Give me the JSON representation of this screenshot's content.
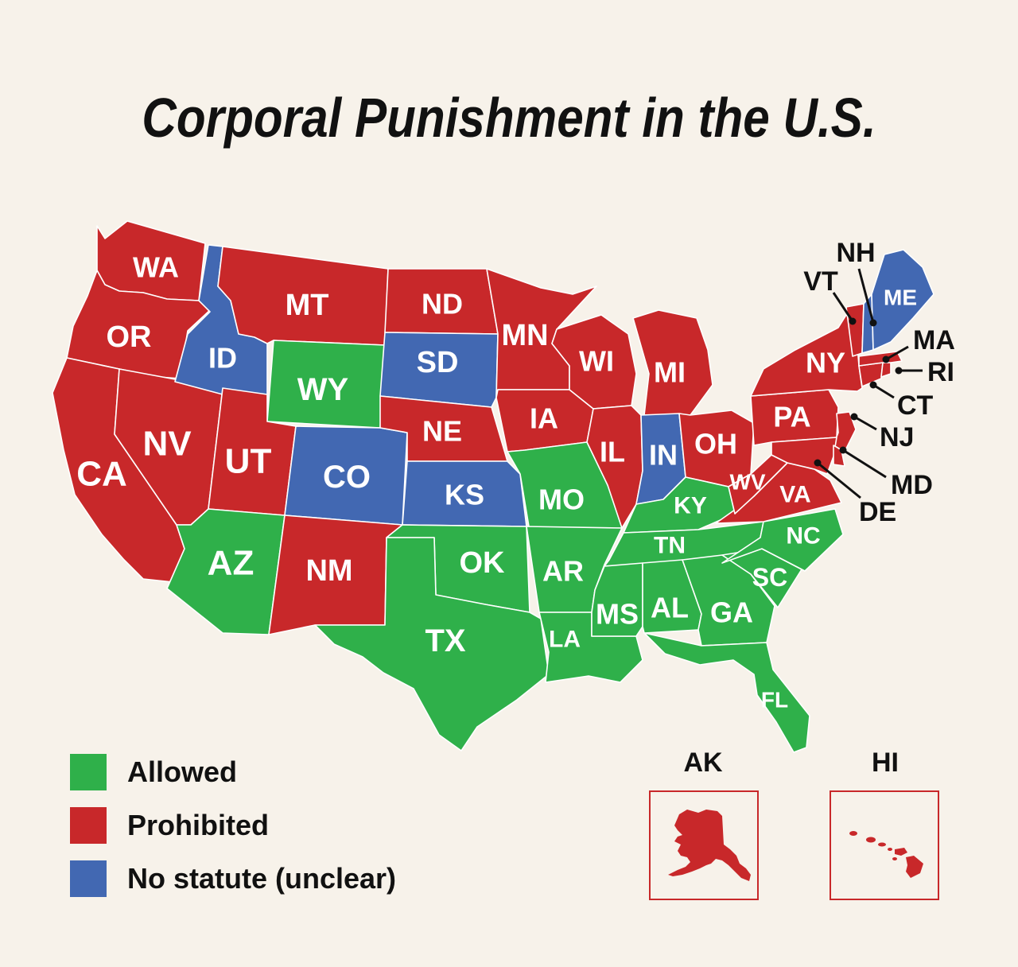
{
  "title": "Corporal Punishment in the U.S.",
  "colors": {
    "allowed": "#2fb04a",
    "prohibited": "#c8282a",
    "no_statute": "#4268b2",
    "background": "#f7f2ea"
  },
  "legend": [
    {
      "key": "allowed",
      "label": "Allowed"
    },
    {
      "key": "prohibited",
      "label": "Prohibited"
    },
    {
      "key": "no_statute",
      "label": "No statute (unclear)"
    }
  ],
  "states": [
    {
      "abbr": "WA",
      "status": "prohibited"
    },
    {
      "abbr": "OR",
      "status": "prohibited"
    },
    {
      "abbr": "CA",
      "status": "prohibited"
    },
    {
      "abbr": "NV",
      "status": "prohibited"
    },
    {
      "abbr": "ID",
      "status": "no_statute"
    },
    {
      "abbr": "MT",
      "status": "prohibited"
    },
    {
      "abbr": "WY",
      "status": "allowed"
    },
    {
      "abbr": "UT",
      "status": "prohibited"
    },
    {
      "abbr": "AZ",
      "status": "allowed"
    },
    {
      "abbr": "CO",
      "status": "no_statute"
    },
    {
      "abbr": "NM",
      "status": "prohibited"
    },
    {
      "abbr": "ND",
      "status": "prohibited"
    },
    {
      "abbr": "SD",
      "status": "no_statute"
    },
    {
      "abbr": "NE",
      "status": "prohibited"
    },
    {
      "abbr": "KS",
      "status": "no_statute"
    },
    {
      "abbr": "OK",
      "status": "allowed"
    },
    {
      "abbr": "TX",
      "status": "allowed"
    },
    {
      "abbr": "MN",
      "status": "prohibited"
    },
    {
      "abbr": "IA",
      "status": "prohibited"
    },
    {
      "abbr": "MO",
      "status": "allowed"
    },
    {
      "abbr": "AR",
      "status": "allowed"
    },
    {
      "abbr": "LA",
      "status": "allowed"
    },
    {
      "abbr": "WI",
      "status": "prohibited"
    },
    {
      "abbr": "IL",
      "status": "prohibited"
    },
    {
      "abbr": "MI",
      "status": "prohibited"
    },
    {
      "abbr": "IN",
      "status": "no_statute"
    },
    {
      "abbr": "OH",
      "status": "prohibited"
    },
    {
      "abbr": "KY",
      "status": "allowed"
    },
    {
      "abbr": "TN",
      "status": "allowed"
    },
    {
      "abbr": "MS",
      "status": "allowed"
    },
    {
      "abbr": "AL",
      "status": "allowed"
    },
    {
      "abbr": "GA",
      "status": "allowed"
    },
    {
      "abbr": "FL",
      "status": "allowed"
    },
    {
      "abbr": "SC",
      "status": "allowed"
    },
    {
      "abbr": "NC",
      "status": "allowed"
    },
    {
      "abbr": "VA",
      "status": "prohibited"
    },
    {
      "abbr": "WV",
      "status": "prohibited"
    },
    {
      "abbr": "PA",
      "status": "prohibited"
    },
    {
      "abbr": "NY",
      "status": "prohibited"
    },
    {
      "abbr": "NJ",
      "status": "prohibited"
    },
    {
      "abbr": "MD",
      "status": "prohibited"
    },
    {
      "abbr": "DE",
      "status": "prohibited"
    },
    {
      "abbr": "CT",
      "status": "prohibited"
    },
    {
      "abbr": "RI",
      "status": "prohibited"
    },
    {
      "abbr": "MA",
      "status": "prohibited"
    },
    {
      "abbr": "VT",
      "status": "prohibited"
    },
    {
      "abbr": "NH",
      "status": "no_statute"
    },
    {
      "abbr": "ME",
      "status": "no_statute"
    },
    {
      "abbr": "AK",
      "status": "prohibited"
    },
    {
      "abbr": "HI",
      "status": "prohibited"
    }
  ],
  "insets": {
    "ak_label": "AK",
    "hi_label": "HI"
  }
}
